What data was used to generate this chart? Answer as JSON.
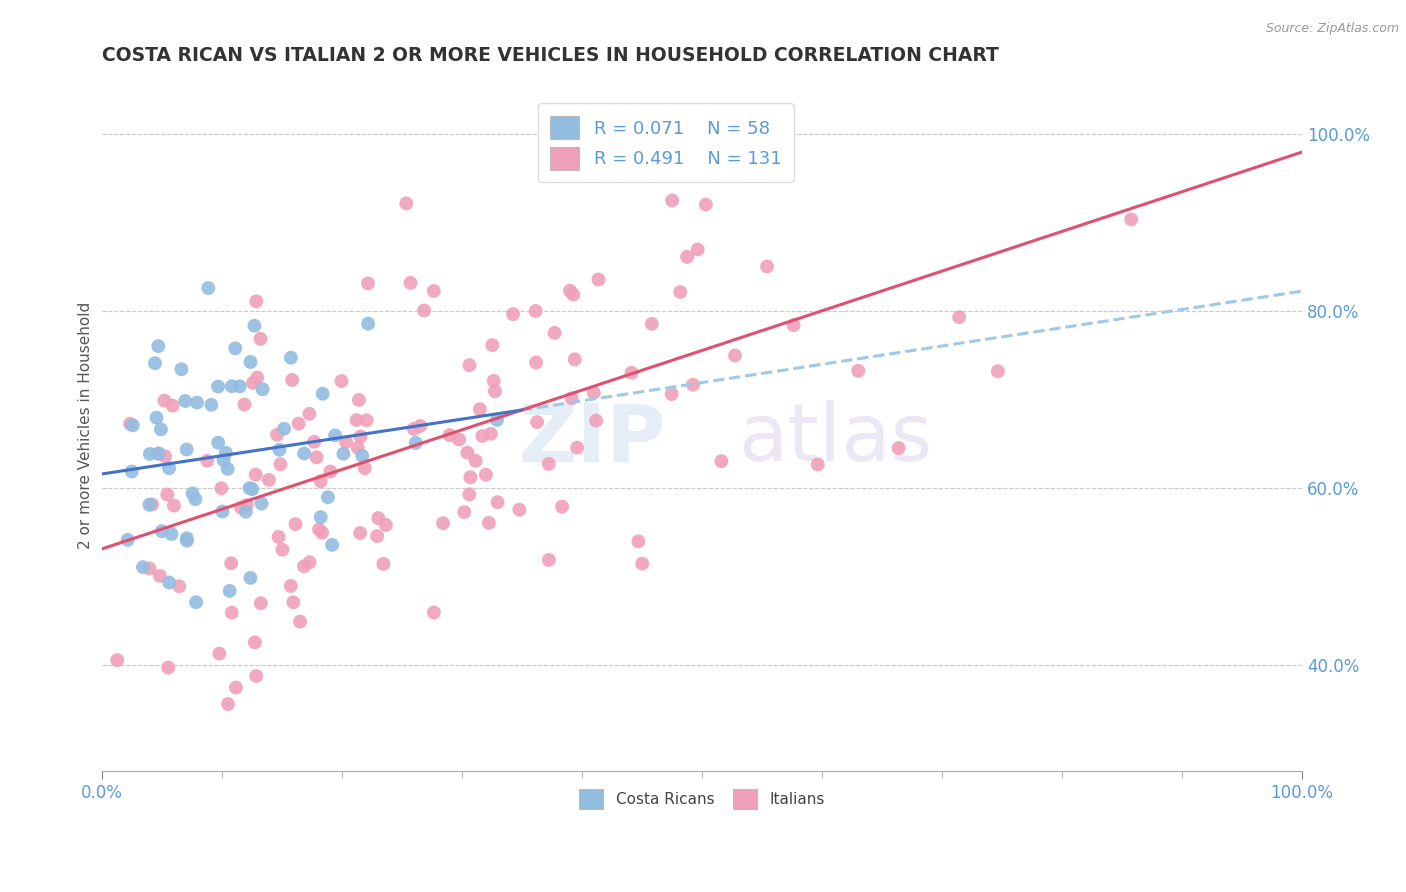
{
  "title": "COSTA RICAN VS ITALIAN 2 OR MORE VEHICLES IN HOUSEHOLD CORRELATION CHART",
  "source": "Source: ZipAtlas.com",
  "ylabel": "2 or more Vehicles in Household",
  "ytick_labels": [
    "40.0%",
    "60.0%",
    "80.0%",
    "100.0%"
  ],
  "ytick_positions": [
    0.4,
    0.6,
    0.8,
    1.0
  ],
  "xlim": [
    0.0,
    1.0
  ],
  "ylim": [
    0.28,
    1.06
  ],
  "cr_color": "#92bce0",
  "it_color": "#f0a0b8",
  "cr_line_color": "#4472c4",
  "it_line_color": "#e05070",
  "cr_dash_color": "#a0c8e8",
  "background_color": "#ffffff",
  "cr_R": 0.071,
  "cr_N": 58,
  "it_R": 0.491,
  "it_N": 131,
  "seed": 42
}
